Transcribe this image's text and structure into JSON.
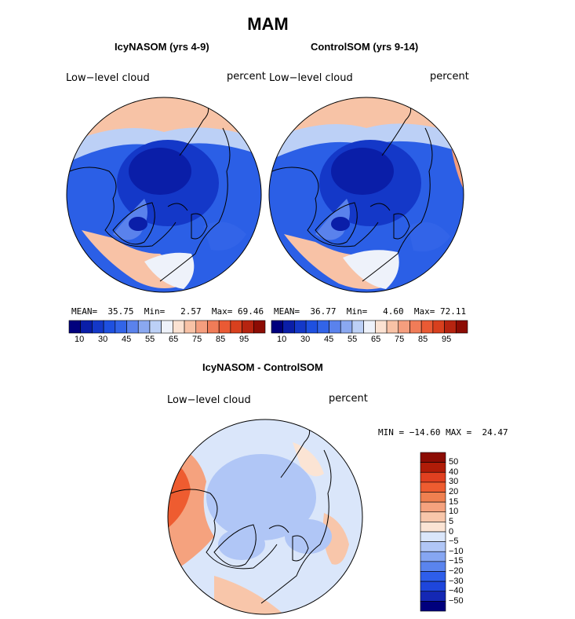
{
  "page": {
    "title": "MAM"
  },
  "panels": [
    {
      "title": "IcyNASOM (yrs 4-9)",
      "variable": "Low−level cloud",
      "units": "percent",
      "stats": {
        "mean_label": "MEAN=",
        "mean": "35.75",
        "min_label": "Min=",
        "min": "2.57",
        "max_label": "Max=",
        "max": "69.46"
      }
    },
    {
      "title": "ControlSOM (yrs 9-14)",
      "variable": "Low−level cloud",
      "units": "percent",
      "stats": {
        "mean_label": "MEAN=",
        "mean": "36.77",
        "min_label": "Min=",
        "min": "4.60",
        "max_label": "Max=",
        "max": "72.11"
      }
    }
  ],
  "diff": {
    "title": "IcyNASOM - ControlSOM",
    "variable": "Low−level cloud",
    "units": "percent",
    "minmax": "MIN = −14.60 MAX =  24.47"
  },
  "colors": {
    "abs_scale": [
      "#00007d",
      "#0a1ea8",
      "#1438c8",
      "#1e50e0",
      "#3264e8",
      "#5a82ec",
      "#8aa8f0",
      "#bcd0f6",
      "#eef2fa",
      "#fbe2d2",
      "#f8c2a6",
      "#f59e7e",
      "#f07c58",
      "#ea5a34",
      "#d8401e",
      "#b62410",
      "#8c0c04"
    ],
    "diff_scale": [
      "#00007d",
      "#1428b4",
      "#1e46dc",
      "#2e5eea",
      "#5a84ee",
      "#86a6f2",
      "#b0c6f6",
      "#dae6fa",
      "#fbe4d4",
      "#f8c6aa",
      "#f5a27e",
      "#f08050",
      "#ee5c30",
      "#e04020",
      "#b01c08",
      "#8c0c04"
    ]
  },
  "chart_data": [
    {
      "type": "heatmap",
      "title": "IcyNASOM (yrs 4-9)",
      "variable": "Low-level cloud",
      "units": "percent",
      "projection": "north polar stereographic",
      "colorbar": {
        "levels": [
          5,
          10,
          20,
          25,
          30,
          35,
          40,
          45,
          50,
          55,
          60,
          65,
          70,
          75,
          80,
          85,
          90,
          95
        ],
        "tick_labels": [
          "10",
          "30",
          "45",
          "55",
          "65",
          "75",
          "85",
          "95"
        ]
      },
      "stats": {
        "mean": 35.75,
        "min": 2.57,
        "max": 69.46
      }
    },
    {
      "type": "heatmap",
      "title": "ControlSOM (yrs 9-14)",
      "variable": "Low-level cloud",
      "units": "percent",
      "projection": "north polar stereographic",
      "colorbar": {
        "levels": [
          5,
          10,
          20,
          25,
          30,
          35,
          40,
          45,
          50,
          55,
          60,
          65,
          70,
          75,
          80,
          85,
          90,
          95
        ],
        "tick_labels": [
          "10",
          "30",
          "45",
          "55",
          "65",
          "75",
          "85",
          "95"
        ]
      },
      "stats": {
        "mean": 36.77,
        "min": 4.6,
        "max": 72.11
      }
    },
    {
      "type": "heatmap",
      "title": "IcyNASOM - ControlSOM",
      "variable": "Low-level cloud",
      "units": "percent",
      "projection": "north polar stereographic",
      "colorbar": {
        "tick_labels": [
          "50",
          "40",
          "30",
          "20",
          "15",
          "10",
          "5",
          "0",
          "−5",
          "−10",
          "−15",
          "−20",
          "−30",
          "−40",
          "−50"
        ]
      },
      "stats": {
        "min": -14.6,
        "max": 24.47
      }
    }
  ]
}
